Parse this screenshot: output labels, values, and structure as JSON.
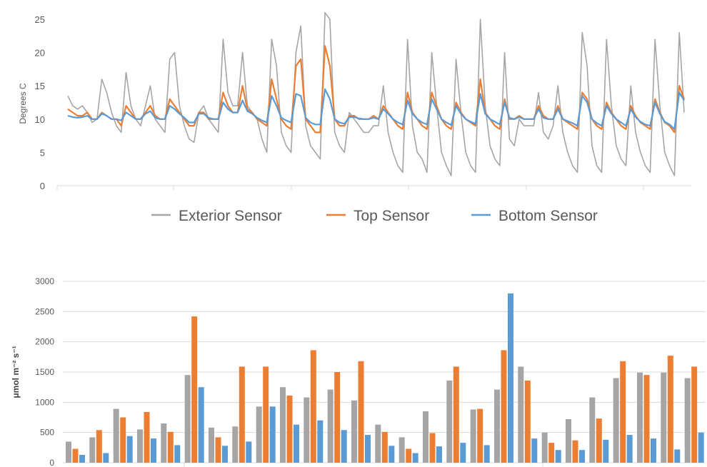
{
  "chart_data": [
    {
      "type": "line",
      "title": "",
      "xlabel": "",
      "ylabel": "Degrees C",
      "ylim": [
        0,
        25
      ],
      "yticks": [
        "0",
        "5",
        "10",
        "15",
        "20",
        "25"
      ],
      "grid": false,
      "legend_position": "bottom",
      "series": [
        {
          "name": "Exterior Sensor",
          "color": "#a5a5a5",
          "values": [
            13.5,
            12,
            11.5,
            12,
            11,
            9.5,
            10,
            16,
            14,
            11,
            9,
            8,
            17,
            12,
            10,
            9,
            12,
            15,
            10,
            9,
            8,
            19,
            20,
            12,
            9,
            7,
            6.5,
            11,
            12,
            10,
            9,
            8,
            22,
            14,
            12,
            12,
            20,
            12,
            11,
            10,
            7,
            5,
            22,
            18,
            8,
            6,
            5,
            20,
            24,
            9,
            6,
            5,
            4,
            26,
            25,
            8,
            6,
            5,
            11,
            10,
            9,
            8,
            8,
            9,
            9,
            15,
            8,
            5,
            3,
            2,
            22,
            9,
            5,
            4,
            2,
            20,
            12,
            5,
            3,
            1.5,
            19,
            11,
            5,
            3,
            2,
            25,
            12,
            6,
            4,
            3,
            20,
            7,
            6,
            10,
            9,
            9,
            9,
            14,
            8,
            7,
            9,
            15,
            8,
            5,
            3,
            2,
            23,
            18,
            6,
            3,
            2,
            22,
            12,
            6,
            4,
            3,
            15,
            8,
            5,
            3,
            2,
            22,
            12,
            5,
            3,
            1.5,
            23,
            11
          ]
        },
        {
          "name": "Top Sensor",
          "color": "#ed7d31",
          "values": [
            11.5,
            11,
            10.5,
            10.5,
            11,
            10,
            10,
            11,
            10.5,
            10,
            10,
            9,
            12,
            11,
            10,
            10,
            11,
            12,
            10.5,
            10,
            10,
            13,
            12,
            11,
            10,
            9,
            9,
            11,
            11,
            10,
            10,
            10,
            14,
            12,
            11,
            11,
            15,
            11.5,
            11,
            10,
            9.5,
            9,
            16,
            13,
            10,
            9,
            8.5,
            18,
            19,
            10,
            9,
            8,
            8,
            21,
            18,
            10,
            9,
            9,
            10.5,
            10.5,
            10,
            10,
            10,
            10.5,
            10,
            12,
            11,
            10,
            9,
            8.5,
            14,
            11,
            10,
            9,
            8.5,
            14,
            12,
            10,
            9,
            8.5,
            12.5,
            11,
            10,
            9.5,
            9,
            16,
            11,
            10,
            9,
            8.5,
            13,
            10,
            10,
            10.5,
            10,
            10,
            10,
            12,
            10.5,
            10,
            10,
            12,
            10,
            9.5,
            9,
            8.5,
            14,
            13,
            10,
            9,
            8.5,
            12.5,
            11,
            10,
            9,
            8.5,
            12,
            10.5,
            9.5,
            9,
            8.5,
            13,
            11,
            9.5,
            9,
            8,
            15,
            13
          ]
        },
        {
          "name": "Bottom Sensor",
          "color": "#5b9bd5",
          "values": [
            10.5,
            10.3,
            10.2,
            10.3,
            10.5,
            10,
            10,
            10.8,
            10.5,
            10,
            10,
            9.8,
            11,
            10.5,
            10,
            10,
            10.8,
            11.2,
            10.2,
            10,
            10,
            12,
            11.5,
            10.8,
            10.2,
            9.5,
            9.5,
            10.8,
            10.8,
            10.2,
            10,
            10,
            12.5,
            11.5,
            11,
            11,
            12.8,
            11.2,
            10.8,
            10.2,
            9.8,
            9.5,
            13.5,
            12,
            10.2,
            9.8,
            9.5,
            13.8,
            13.5,
            10.2,
            9.5,
            9.2,
            9.2,
            14.5,
            13,
            10,
            9.5,
            9.3,
            10.3,
            10.3,
            10.1,
            10,
            10,
            10.2,
            10,
            11.5,
            10.8,
            10,
            9.5,
            9.2,
            12.8,
            10.8,
            10,
            9.5,
            9.2,
            13,
            11.5,
            10,
            9.5,
            9.1,
            12,
            10.8,
            10,
            9.6,
            9.3,
            13.8,
            10.8,
            10,
            9.6,
            9.2,
            12.5,
            10.2,
            10,
            10.3,
            10,
            10,
            10,
            11.5,
            10.2,
            10,
            10,
            11.5,
            10,
            9.7,
            9.4,
            9,
            13.5,
            12.5,
            10,
            9.4,
            9,
            12,
            10.8,
            10,
            9.5,
            9,
            11.5,
            10.3,
            9.6,
            9.2,
            9,
            12.5,
            10.8,
            9.6,
            9.2,
            8.5,
            14,
            12.8
          ]
        }
      ]
    },
    {
      "type": "bar",
      "title": "",
      "xlabel": "",
      "ylabel": "μmol m⁻² s⁻¹",
      "ylim": [
        0,
        3000
      ],
      "yticks": [
        "0",
        "500",
        "1000",
        "1500",
        "2000",
        "2500",
        "3000"
      ],
      "grid": true,
      "series": [
        {
          "color": "#a5a5a5",
          "values": [
            350,
            420,
            890,
            550,
            650,
            1450,
            580,
            600,
            930,
            1250,
            1080,
            1210,
            1030,
            630,
            420,
            850,
            1360,
            880,
            1210,
            1590,
            500,
            720,
            1080,
            1400,
            1490,
            1490,
            1400
          ]
        },
        {
          "color": "#ed7d31",
          "values": [
            230,
            540,
            750,
            840,
            510,
            2420,
            420,
            1590,
            1590,
            1110,
            1860,
            1500,
            1680,
            510,
            230,
            490,
            1590,
            890,
            1860,
            1360,
            330,
            370,
            730,
            1680,
            1450,
            1770,
            1590
          ]
        },
        {
          "color": "#5b9bd5",
          "values": [
            130,
            160,
            440,
            400,
            290,
            1250,
            280,
            350,
            930,
            630,
            700,
            540,
            460,
            280,
            160,
            270,
            330,
            290,
            2800,
            400,
            210,
            210,
            380,
            460,
            400,
            220,
            500
          ]
        }
      ]
    }
  ]
}
